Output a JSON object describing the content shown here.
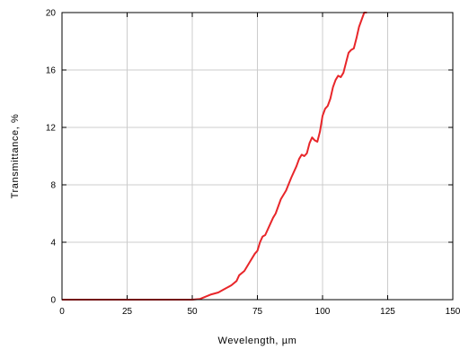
{
  "chart_data": {
    "type": "line",
    "title": "",
    "xlabel": "Wevelength, µm",
    "ylabel": "Transmittance, %",
    "xlim": [
      0,
      150
    ],
    "ylim": [
      0,
      20
    ],
    "xticks": [
      0,
      25,
      50,
      75,
      100,
      125,
      150
    ],
    "yticks": [
      0,
      4,
      8,
      12,
      16,
      20
    ],
    "grid": true,
    "legend": "none",
    "colors": {
      "line": "#e8262a",
      "grid": "#cccccc",
      "axis": "#000000"
    },
    "series": [
      {
        "x": [
          0,
          10,
          20,
          30,
          40,
          50,
          53,
          55,
          57,
          60,
          62,
          65,
          67,
          68,
          70,
          72,
          74,
          75,
          76,
          77,
          78,
          80,
          81,
          82,
          84,
          86,
          88,
          90,
          91,
          92,
          93,
          94,
          95,
          96,
          97,
          98,
          99,
          100,
          101,
          102,
          103,
          104,
          105,
          106,
          107,
          108,
          109,
          110,
          111,
          112,
          113,
          114,
          115,
          116,
          117
        ],
        "y": [
          0,
          0,
          0,
          0,
          0,
          0,
          0.05,
          0.2,
          0.35,
          0.5,
          0.7,
          1.0,
          1.3,
          1.7,
          2.0,
          2.6,
          3.2,
          3.4,
          4.0,
          4.4,
          4.5,
          5.3,
          5.7,
          6.0,
          7.0,
          7.6,
          8.5,
          9.3,
          9.8,
          10.1,
          10.0,
          10.2,
          10.9,
          11.3,
          11.1,
          11.0,
          11.7,
          12.8,
          13.3,
          13.5,
          14.0,
          14.8,
          15.3,
          15.6,
          15.5,
          15.8,
          16.5,
          17.2,
          17.4,
          17.5,
          18.2,
          19.0,
          19.5,
          20.0,
          20.0
        ]
      }
    ]
  }
}
